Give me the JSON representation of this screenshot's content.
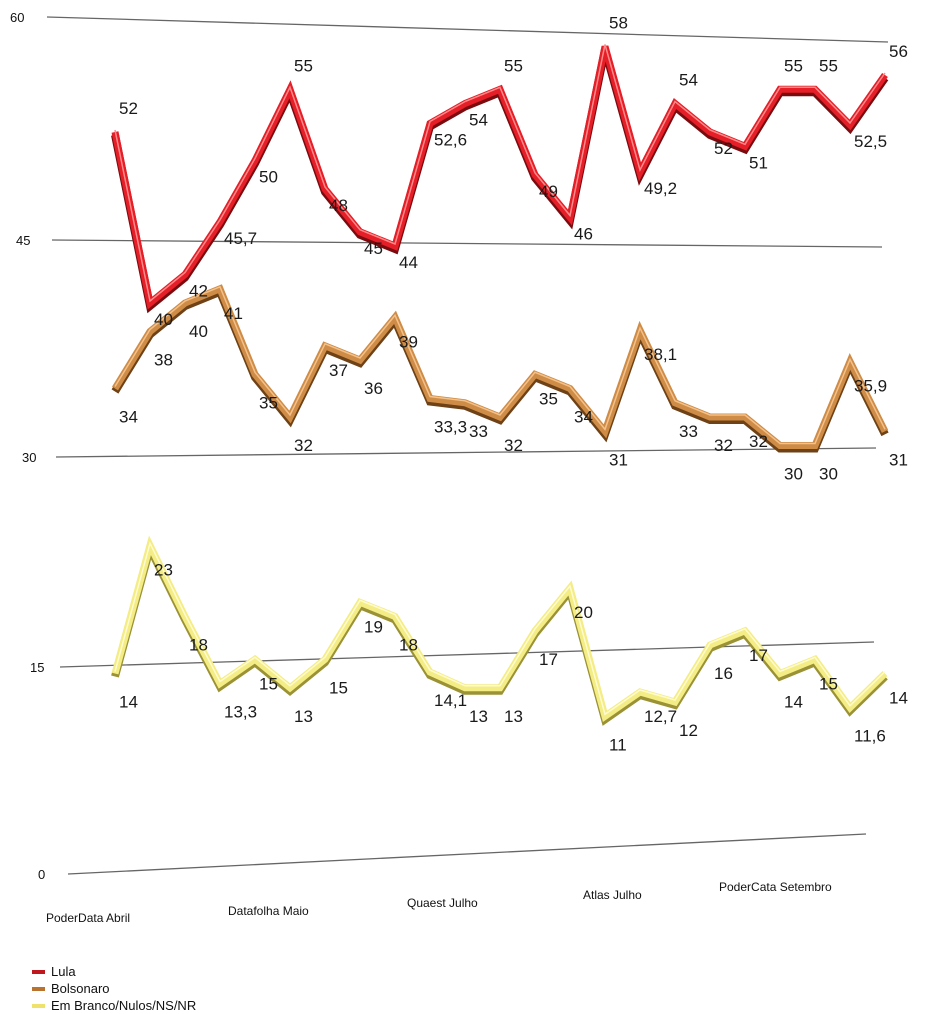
{
  "chart_data": {
    "type": "line",
    "ylim": [
      0,
      60
    ],
    "yticks": [
      "0",
      "15",
      "30",
      "45",
      "60"
    ],
    "category_labels": [
      "PoderData Abril",
      "Datafolha Maio",
      "Quaest Julho",
      "Atlas Julho",
      "PoderCata Setembro"
    ],
    "legend_placement": "bottom-left",
    "grid": true,
    "series": [
      {
        "name": "Lula",
        "color": "#e8202a",
        "values": [
          52,
          40,
          42,
          45.7,
          50,
          55,
          48,
          45,
          44,
          52.6,
          54,
          55,
          49,
          46,
          58,
          49.2,
          54,
          52,
          51,
          55,
          55,
          52.5,
          56
        ],
        "labels": [
          "52",
          "40",
          "42",
          "45,7",
          "50",
          "55",
          "48",
          "45",
          "44",
          "52,6",
          "54",
          "55",
          "49",
          "46",
          "58",
          "49,2",
          "54",
          "52",
          "51",
          "55",
          "55",
          "52,5",
          "56"
        ]
      },
      {
        "name": "Bolsonaro",
        "color": "#c98844",
        "values": [
          34,
          38,
          40,
          41,
          35,
          32,
          37,
          36,
          39,
          33.3,
          33,
          32,
          35,
          34,
          31,
          38.1,
          33,
          32,
          32,
          30,
          30,
          35.9,
          31
        ],
        "labels": [
          "34",
          "38",
          "40",
          "41",
          "35",
          "32",
          "37",
          "36",
          "39",
          "33,3",
          "33",
          "32",
          "35",
          "34",
          "31",
          "38,1",
          "33",
          "32",
          "32",
          "30",
          "30",
          "35,9",
          "31"
        ]
      },
      {
        "name": "Em Branco/Nulos/NS/NR",
        "color": "#f2ea82",
        "values": [
          14,
          23,
          18,
          13.3,
          15,
          13,
          15,
          19,
          18,
          14.1,
          13,
          13,
          17,
          20,
          11,
          12.7,
          12,
          16,
          17,
          14,
          15,
          11.6,
          14
        ],
        "labels": [
          "14",
          "23",
          "18",
          "13,3",
          "15",
          "13",
          "15",
          "19",
          "18",
          "14,1",
          "13",
          "13",
          "17",
          "20",
          "11",
          "12,7",
          "12",
          "16",
          "17",
          "14",
          "15",
          "11,6",
          "14"
        ]
      }
    ]
  }
}
